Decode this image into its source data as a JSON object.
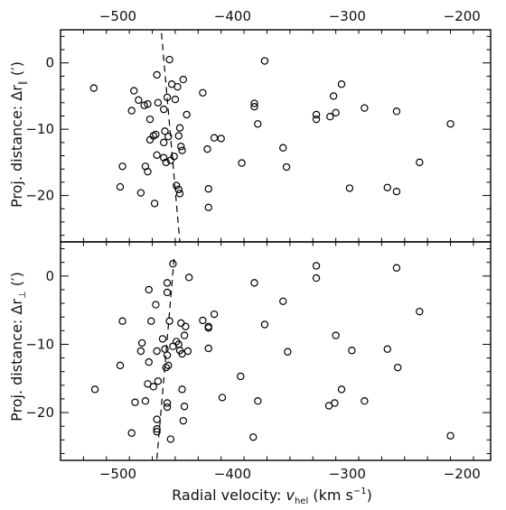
{
  "chart_data": {
    "type": "scatter",
    "xlabel_main": "Radial velocity: ",
    "xlabel_var": "v",
    "xlabel_sub": "hel",
    "xlabel_unit": " (km s",
    "xlabel_sup": "−1",
    "xlabel_close": ")",
    "xlim": [
      -550,
      -175
    ],
    "xticks": [
      -500,
      -400,
      -300,
      -200
    ],
    "xtick_labels": [
      "−500",
      "−400",
      "−300",
      "−200"
    ],
    "panels": [
      {
        "ylabel_main": "Proj. distance: Δr",
        "ylabel_sub": "∥",
        "ylabel_unit": " (′)",
        "ylim": [
          -27,
          5
        ],
        "yticks": [
          0,
          -10,
          -20
        ],
        "ytick_labels": [
          "0",
          "−10",
          "−20"
        ],
        "fit_line": [
          [
            -462,
            4.5
          ],
          [
            -446,
            -27
          ]
        ],
        "points": [
          [
            -521,
            -3.8
          ],
          [
            -486,
            -4.2
          ],
          [
            -482,
            -5.6
          ],
          [
            -477,
            -6.4
          ],
          [
            -474,
            -6.2
          ],
          [
            -488,
            -7.2
          ],
          [
            -465,
            -6.0
          ],
          [
            -460,
            -7.0
          ],
          [
            -457,
            -5.2
          ],
          [
            -455,
            0.5
          ],
          [
            -453,
            -3.2
          ],
          [
            -450,
            -5.5
          ],
          [
            -448,
            -3.6
          ],
          [
            -443,
            -2.5
          ],
          [
            -466,
            -1.8
          ],
          [
            -472,
            -8.5
          ],
          [
            -469,
            -11.0
          ],
          [
            -472,
            -11.6
          ],
          [
            -467,
            -10.8
          ],
          [
            -460,
            -12.0
          ],
          [
            -459,
            -10.3
          ],
          [
            -456,
            -11.1
          ],
          [
            -447,
            -11.0
          ],
          [
            -445,
            -12.6
          ],
          [
            -444,
            -13.2
          ],
          [
            -446,
            -9.8
          ],
          [
            -440,
            -7.8
          ],
          [
            -426,
            -4.5
          ],
          [
            -422,
            -13.0
          ],
          [
            -416,
            -11.3
          ],
          [
            -410,
            -11.4
          ],
          [
            -466,
            -13.9
          ],
          [
            -476,
            -15.6
          ],
          [
            -474,
            -16.4
          ],
          [
            -460,
            -14.3
          ],
          [
            -458,
            -15.0
          ],
          [
            -454,
            -14.7
          ],
          [
            -451,
            -14.1
          ],
          [
            -496,
            -15.6
          ],
          [
            -498,
            -18.7
          ],
          [
            -480,
            -19.6
          ],
          [
            -468,
            -21.2
          ],
          [
            -449,
            -18.5
          ],
          [
            -447,
            -19.1
          ],
          [
            -446,
            -19.7
          ],
          [
            -421,
            -19.0
          ],
          [
            -421,
            -21.8
          ],
          [
            -392,
            -15.1
          ],
          [
            -372,
            0.3
          ],
          [
            -381,
            -6.1
          ],
          [
            -381,
            -6.6
          ],
          [
            -378,
            -9.2
          ],
          [
            -356,
            -12.8
          ],
          [
            -353,
            -15.7
          ],
          [
            -327,
            -7.8
          ],
          [
            -327,
            -8.5
          ],
          [
            -315,
            -8.1
          ],
          [
            -312,
            -5.0
          ],
          [
            -310,
            -7.5
          ],
          [
            -305,
            -3.2
          ],
          [
            -285,
            -6.8
          ],
          [
            -257,
            -7.3
          ],
          [
            -298,
            -18.9
          ],
          [
            -265,
            -18.8
          ],
          [
            -257,
            -19.4
          ],
          [
            -237,
            -15.0
          ],
          [
            -210,
            -9.2
          ]
        ]
      },
      {
        "ylabel_main": "Proj. distance: Δr",
        "ylabel_sub": "⊥",
        "ylabel_unit": " (′)",
        "ylim": [
          -27,
          5
        ],
        "yticks": [
          0,
          -10,
          -20
        ],
        "ytick_labels": [
          "0",
          "−10",
          "−20"
        ],
        "fit_line": [
          [
            -466,
            -26.8
          ],
          [
            -451,
            2.5
          ]
        ],
        "points": [
          [
            -452,
            1.8
          ],
          [
            -457,
            -1.0
          ],
          [
            -457,
            -2.4
          ],
          [
            -438,
            -0.2
          ],
          [
            -473,
            -2.0
          ],
          [
            -467,
            -4.2
          ],
          [
            -496,
            -6.6
          ],
          [
            -471,
            -6.6
          ],
          [
            -479,
            -9.8
          ],
          [
            -480,
            -11.0
          ],
          [
            -473,
            -12.6
          ],
          [
            -466,
            -11.0
          ],
          [
            -461,
            -9.2
          ],
          [
            -459,
            -10.7
          ],
          [
            -457,
            -11.6
          ],
          [
            -455,
            -6.6
          ],
          [
            -452,
            -10.3
          ],
          [
            -449,
            -9.6
          ],
          [
            -447,
            -10.0
          ],
          [
            -446,
            -10.9
          ],
          [
            -444,
            -11.4
          ],
          [
            -442,
            -8.7
          ],
          [
            -441,
            -7.4
          ],
          [
            -439,
            -11.0
          ],
          [
            -445,
            -6.9
          ],
          [
            -426,
            -6.5
          ],
          [
            -421,
            -7.4
          ],
          [
            -421,
            -7.6
          ],
          [
            -416,
            -5.6
          ],
          [
            -421,
            -10.6
          ],
          [
            -458,
            -13.4
          ],
          [
            -456,
            -13.1
          ],
          [
            -465,
            -15.4
          ],
          [
            -474,
            -15.8
          ],
          [
            -469,
            -16.2
          ],
          [
            -498,
            -13.1
          ],
          [
            -520,
            -16.6
          ],
          [
            -485,
            -18.5
          ],
          [
            -476,
            -18.3
          ],
          [
            -466,
            -21.0
          ],
          [
            -466,
            -22.4
          ],
          [
            -466,
            -22.8
          ],
          [
            -457,
            -18.6
          ],
          [
            -457,
            -19.2
          ],
          [
            -454,
            -23.9
          ],
          [
            -488,
            -23.0
          ],
          [
            -444,
            -16.6
          ],
          [
            -442,
            -19.1
          ],
          [
            -443,
            -21.2
          ],
          [
            -409,
            -17.8
          ],
          [
            -393,
            -14.7
          ],
          [
            -381,
            -1.0
          ],
          [
            -372,
            -7.1
          ],
          [
            -378,
            -18.3
          ],
          [
            -382,
            -23.6
          ],
          [
            -356,
            -3.7
          ],
          [
            -352,
            -11.1
          ],
          [
            -327,
            1.5
          ],
          [
            -327,
            -0.3
          ],
          [
            -310,
            -8.7
          ],
          [
            -316,
            -19.0
          ],
          [
            -311,
            -18.6
          ],
          [
            -305,
            -16.6
          ],
          [
            -296,
            -10.9
          ],
          [
            -285,
            -18.3
          ],
          [
            -265,
            -10.7
          ],
          [
            -257,
            1.2
          ],
          [
            -256,
            -13.4
          ],
          [
            -237,
            -5.2
          ],
          [
            -210,
            -23.4
          ]
        ]
      }
    ]
  }
}
